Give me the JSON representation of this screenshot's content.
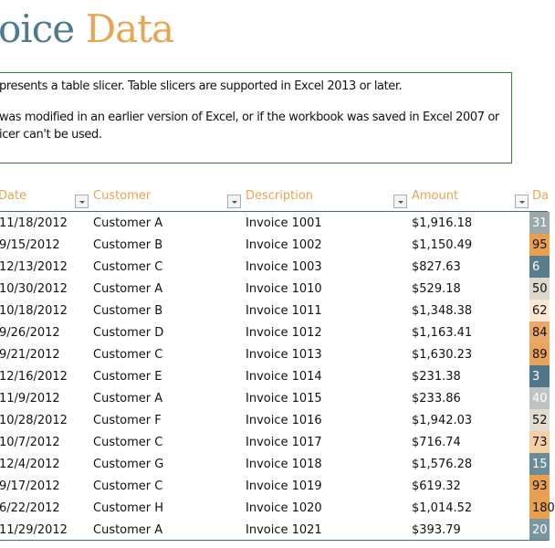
{
  "title": {
    "part1": "oice",
    "part2": "Data"
  },
  "notice": {
    "line1": "presents a table slicer. Table slicers are supported in Excel 2013 or later.",
    "line2": "was modified in an earlier version of Excel, or if the workbook was saved in Excel 2007 or",
    "line3": "icer can't be used."
  },
  "columns": [
    "Date",
    "Customer",
    "Description",
    "Amount",
    "Da"
  ],
  "colors": {
    "accent": "#e8a452",
    "title_blue": "#4e7a8e"
  },
  "rows": [
    {
      "date": "11/18/2012",
      "customer": "Customer A",
      "description": "Invoice 1001",
      "amount": "$1,916.18",
      "days": "31",
      "color": "#9aa8ab",
      "light": true
    },
    {
      "date": "9/15/2012",
      "customer": "Customer B",
      "description": "Invoice 1002",
      "amount": "$1,150.49",
      "days": "95",
      "color": "#e8a050",
      "light": false
    },
    {
      "date": "12/13/2012",
      "customer": "Customer C",
      "description": "Invoice 1003",
      "amount": "$827.63",
      "days": "6",
      "color": "#5a7d8c",
      "light": true
    },
    {
      "date": "10/30/2012",
      "customer": "Customer A",
      "description": "Invoice 1010",
      "amount": "$529.18",
      "days": "50",
      "color": "#ddd8cc",
      "light": false
    },
    {
      "date": "10/18/2012",
      "customer": "Customer B",
      "description": "Invoice 1011",
      "amount": "$1,348.38",
      "days": "62",
      "color": "#fbe6d2",
      "light": false
    },
    {
      "date": "9/26/2012",
      "customer": "Customer D",
      "description": "Invoice 1012",
      "amount": "$1,163.41",
      "days": "84",
      "color": "#eaa86a",
      "light": false
    },
    {
      "date": "9/21/2012",
      "customer": "Customer C",
      "description": "Invoice 1013",
      "amount": "$1,630.23",
      "days": "89",
      "color": "#e9a35a",
      "light": false
    },
    {
      "date": "12/16/2012",
      "customer": "Customer E",
      "description": "Invoice 1014",
      "amount": "$231.38",
      "days": "3",
      "color": "#4f7588",
      "light": true
    },
    {
      "date": "11/9/2012",
      "customer": "Customer A",
      "description": "Invoice 1015",
      "amount": "$233.86",
      "days": "40",
      "color": "#bcc3c0",
      "light": true
    },
    {
      "date": "10/28/2012",
      "customer": "Customer F",
      "description": "Invoice 1016",
      "amount": "$1,942.03",
      "days": "52",
      "color": "#e1dbd0",
      "light": false
    },
    {
      "date": "10/7/2012",
      "customer": "Customer C",
      "description": "Invoice 1017",
      "amount": "$716.74",
      "days": "73",
      "color": "#f4cfa4",
      "light": false
    },
    {
      "date": "12/4/2012",
      "customer": "Customer G",
      "description": "Invoice 1018",
      "amount": "$1,576.28",
      "days": "15",
      "color": "#6d8c98",
      "light": true
    },
    {
      "date": "9/17/2012",
      "customer": "Customer C",
      "description": "Invoice 1019",
      "amount": "$619.32",
      "days": "93",
      "color": "#e8a050",
      "light": false
    },
    {
      "date": "6/22/2012",
      "customer": "Customer H",
      "description": "Invoice 1020",
      "amount": "$1,014.52",
      "days": "180",
      "color": "#e8a050",
      "light": false
    },
    {
      "date": "11/29/2012",
      "customer": "Customer A",
      "description": "Invoice 1021",
      "amount": "$393.79",
      "days": "20",
      "color": "#7a96a0",
      "light": true
    }
  ]
}
